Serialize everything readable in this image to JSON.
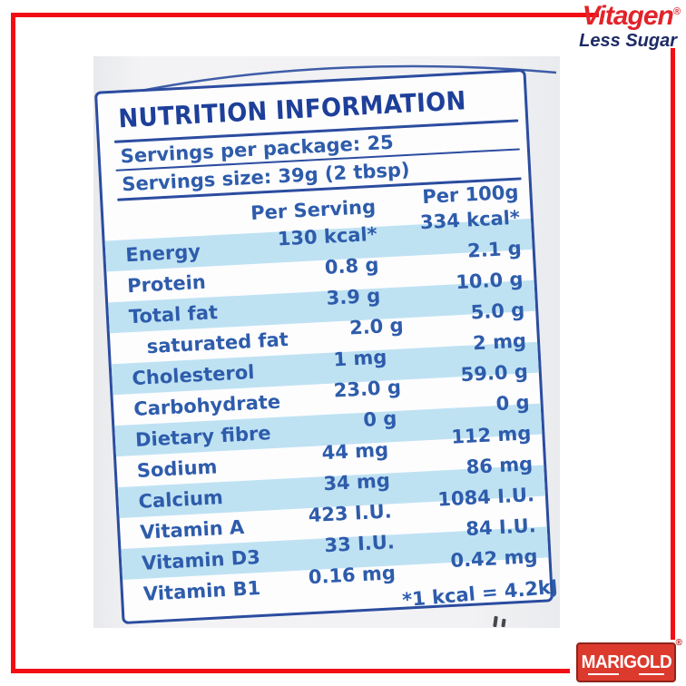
{
  "brand": {
    "vitagen": "Vitagen",
    "vitagen_reg": "®",
    "tagline": "Less Sugar",
    "marigold": "MARIGOLD",
    "marigold_reg": "®"
  },
  "label": {
    "title": "NUTRITION INFORMATION",
    "servings_per_package": "Servings per package: 25",
    "serving_size": "Servings size: 39g (2 tbsp)",
    "columns": [
      "Per Serving",
      "Per 100g"
    ],
    "rows": [
      {
        "name": "Energy",
        "per_serving": "130 kcal*",
        "per_100g": "334 kcal*"
      },
      {
        "name": "Protein",
        "per_serving": "0.8 g",
        "per_100g": "2.1 g"
      },
      {
        "name": "Total fat",
        "per_serving": "3.9 g",
        "per_100g": "10.0 g"
      },
      {
        "name": "saturated fat",
        "per_serving": "2.0 g",
        "per_100g": "5.0 g",
        "sub": true
      },
      {
        "name": "Cholesterol",
        "per_serving": "1 mg",
        "per_100g": "2 mg"
      },
      {
        "name": "Carbohydrate",
        "per_serving": "23.0 g",
        "per_100g": "59.0 g"
      },
      {
        "name": "Dietary fibre",
        "per_serving": "0 g",
        "per_100g": "0 g"
      },
      {
        "name": "Sodium",
        "per_serving": "44 mg",
        "per_100g": "112 mg"
      },
      {
        "name": "Calcium",
        "per_serving": "34 mg",
        "per_100g": "86 mg"
      },
      {
        "name": "Vitamin A",
        "per_serving": "423 I.U.",
        "per_100g": "1084 I.U."
      },
      {
        "name": "Vitamin D3",
        "per_serving": "33 I.U.",
        "per_100g": "84 I.U."
      },
      {
        "name": "Vitamin B1",
        "per_serving": "0.16 mg",
        "per_100g": "0.42 mg"
      }
    ],
    "footnote": "*1 kcal = 4.2kJ"
  },
  "colors": {
    "frame_red": "#f20d15",
    "vitagen_red": "#e2232a",
    "tagline_navy": "#1d2a66",
    "label_text_blue": "#2e5cab",
    "label_border_blue": "#2b4c9f",
    "stripe_blue": "#bfe2f3",
    "marigold_red": "#dc3a2d",
    "marigold_border": "#8f241b"
  }
}
